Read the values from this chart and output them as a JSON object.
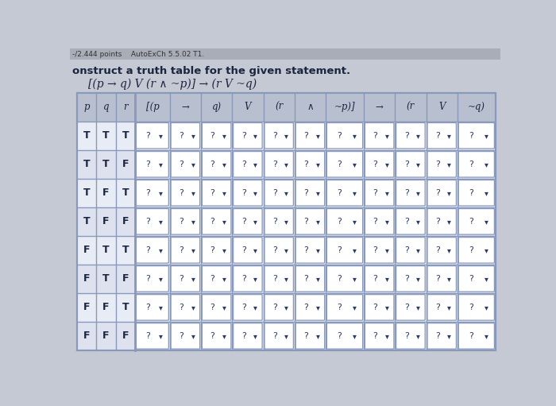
{
  "title_text": "onstruct a truth table for the given statement.",
  "formula": "[(p → q) V (r ∧ ~p)] → (r V ~q)",
  "header": [
    "p",
    "q",
    "r",
    "[(p",
    "→",
    "q)",
    "V",
    "(r",
    "∧",
    "~p)]",
    "→",
    "(r",
    "V",
    "~q)"
  ],
  "rows": [
    [
      "T",
      "T",
      "T"
    ],
    [
      "T",
      "T",
      "F"
    ],
    [
      "T",
      "F",
      "T"
    ],
    [
      "T",
      "F",
      "F"
    ],
    [
      "F",
      "T",
      "T"
    ],
    [
      "F",
      "T",
      "F"
    ],
    [
      "F",
      "F",
      "T"
    ],
    [
      "F",
      "F",
      "F"
    ]
  ],
  "page_bg": "#c5c9d4",
  "top_bar_color": "#a8adb8",
  "table_header_bg": "#b8bfce",
  "table_row_bg1": "#e8ecf4",
  "table_row_bg2": "#dde2ee",
  "cell_bg": "#ffffff",
  "cell_border": "#8899bb",
  "table_border": "#8899bb",
  "text_color": "#1a2540",
  "dropdown_text_color": "#2a3a6a",
  "header_text_color": "#1a2540",
  "top_text_color": "#333333"
}
